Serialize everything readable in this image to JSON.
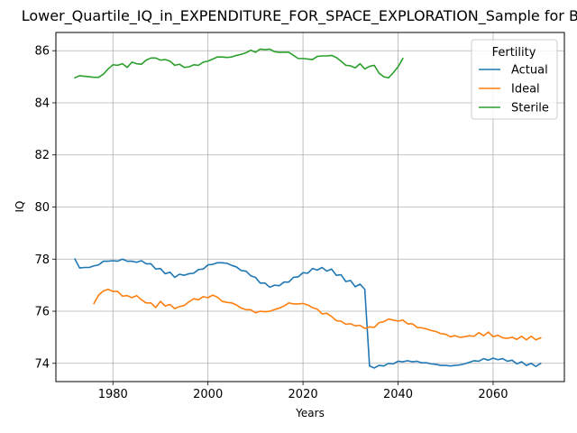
{
  "chart_data": {
    "type": "line",
    "title": "Lower_Quartile_IQ_in_EXPENDITURE_FOR_SPACE_EXPLORATION_Sample for Black",
    "xlabel": "Years",
    "ylabel": "IQ",
    "xlim": [
      1968,
      2075
    ],
    "ylim": [
      73.3,
      86.7
    ],
    "xticks": [
      1980,
      2000,
      2020,
      2040,
      2060
    ],
    "yticks": [
      74,
      76,
      78,
      80,
      82,
      84,
      86
    ],
    "grid": true,
    "legend": {
      "title": "Fertility",
      "placement": "upper-right"
    },
    "series": [
      {
        "name": "Actual",
        "color": "#1f77b4",
        "x": [
          1972,
          1973,
          1974,
          1975,
          1976,
          1977,
          1978,
          1979,
          1980,
          1981,
          1982,
          1983,
          1984,
          1985,
          1986,
          1987,
          1988,
          1989,
          1990,
          1991,
          1992,
          1993,
          1994,
          1995,
          1996,
          1997,
          1998,
          1999,
          2000,
          2001,
          2002,
          2003,
          2004,
          2005,
          2006,
          2007,
          2008,
          2009,
          2010,
          2011,
          2012,
          2013,
          2014,
          2015,
          2016,
          2017,
          2018,
          2019,
          2020,
          2021,
          2022,
          2023,
          2024,
          2025,
          2026,
          2027,
          2028,
          2029,
          2030,
          2031,
          2032,
          2033,
          2034,
          2035,
          2036,
          2037,
          2038,
          2039,
          2040,
          2041,
          2042,
          2043,
          2044,
          2045,
          2046,
          2047,
          2048,
          2049,
          2050,
          2051,
          2052,
          2053,
          2054,
          2055,
          2056,
          2057,
          2058,
          2059,
          2060,
          2061,
          2062,
          2063,
          2064,
          2065,
          2066,
          2067,
          2068,
          2069,
          2070
        ],
        "values": [
          78.0,
          77.66,
          77.68,
          77.68,
          77.74,
          77.78,
          77.92,
          77.92,
          77.94,
          77.92,
          78.0,
          77.92,
          77.92,
          77.88,
          77.94,
          77.82,
          77.82,
          77.62,
          77.64,
          77.44,
          77.5,
          77.3,
          77.42,
          77.38,
          77.44,
          77.46,
          77.6,
          77.62,
          77.78,
          77.8,
          77.86,
          77.86,
          77.84,
          77.76,
          77.7,
          77.56,
          77.54,
          77.36,
          77.3,
          77.08,
          77.08,
          76.92,
          77.0,
          76.98,
          77.12,
          77.12,
          77.3,
          77.32,
          77.48,
          77.46,
          77.64,
          77.58,
          77.68,
          77.54,
          77.62,
          77.38,
          77.4,
          77.14,
          77.18,
          76.94,
          77.04,
          76.84,
          73.9,
          73.82,
          73.92,
          73.9,
          74.0,
          73.98,
          74.08,
          74.06,
          74.1,
          74.06,
          74.08,
          74.02,
          74.02,
          73.98,
          73.96,
          73.92,
          73.92,
          73.9,
          73.92,
          73.94,
          73.98,
          74.04,
          74.1,
          74.08,
          74.18,
          74.12,
          74.2,
          74.14,
          74.18,
          74.08,
          74.12,
          73.98,
          74.06,
          73.92,
          74.0,
          73.88,
          74.0
        ]
      },
      {
        "name": "Ideal",
        "color": "#ff7f0e",
        "x": [
          1976,
          1977,
          1978,
          1979,
          1980,
          1981,
          1982,
          1983,
          1984,
          1985,
          1986,
          1987,
          1988,
          1989,
          1990,
          1991,
          1992,
          1993,
          1994,
          1995,
          1996,
          1997,
          1998,
          1999,
          2000,
          2001,
          2002,
          2003,
          2004,
          2005,
          2006,
          2007,
          2008,
          2009,
          2010,
          2011,
          2012,
          2013,
          2014,
          2015,
          2016,
          2017,
          2018,
          2019,
          2020,
          2021,
          2022,
          2023,
          2024,
          2025,
          2026,
          2027,
          2028,
          2029,
          2030,
          2031,
          2032,
          2033,
          2034,
          2035,
          2036,
          2037,
          2038,
          2039,
          2040,
          2041,
          2042,
          2043,
          2044,
          2045,
          2046,
          2047,
          2048,
          2049,
          2050,
          2051,
          2052,
          2053,
          2054,
          2055,
          2056,
          2057,
          2058,
          2059,
          2060,
          2061,
          2062,
          2063,
          2064,
          2065,
          2066,
          2067,
          2068,
          2069,
          2070
        ],
        "values": [
          76.3,
          76.62,
          76.78,
          76.84,
          76.76,
          76.76,
          76.58,
          76.6,
          76.52,
          76.6,
          76.44,
          76.32,
          76.32,
          76.14,
          76.38,
          76.2,
          76.26,
          76.1,
          76.18,
          76.22,
          76.36,
          76.48,
          76.44,
          76.56,
          76.52,
          76.62,
          76.54,
          76.38,
          76.34,
          76.32,
          76.24,
          76.12,
          76.06,
          76.06,
          75.94,
          76.0,
          75.98,
          76.0,
          76.06,
          76.12,
          76.2,
          76.32,
          76.28,
          76.28,
          76.3,
          76.24,
          76.14,
          76.08,
          75.9,
          75.92,
          75.8,
          75.64,
          75.62,
          75.5,
          75.52,
          75.44,
          75.46,
          75.34,
          75.4,
          75.38,
          75.56,
          75.6,
          75.7,
          75.66,
          75.62,
          75.66,
          75.52,
          75.52,
          75.38,
          75.36,
          75.32,
          75.26,
          75.22,
          75.14,
          75.12,
          75.02,
          75.06,
          75.0,
          75.02,
          75.06,
          75.04,
          75.18,
          75.06,
          75.2,
          75.02,
          75.08,
          74.98,
          74.96,
          75.0,
          74.92,
          75.04,
          74.9,
          75.04,
          74.9,
          74.98
        ]
      },
      {
        "name": "Sterile",
        "color": "#2ca02c",
        "x": [
          1972,
          1973,
          1974,
          1975,
          1976,
          1977,
          1978,
          1979,
          1980,
          1981,
          1982,
          1983,
          1984,
          1985,
          1986,
          1987,
          1988,
          1989,
          1990,
          1991,
          1992,
          1993,
          1994,
          1995,
          1996,
          1997,
          1998,
          1999,
          2000,
          2001,
          2002,
          2003,
          2004,
          2005,
          2006,
          2007,
          2008,
          2009,
          2010,
          2011,
          2012,
          2013,
          2014,
          2015,
          2016,
          2017,
          2018,
          2019,
          2020,
          2021,
          2022,
          2023,
          2024,
          2025,
          2026,
          2027,
          2028,
          2029,
          2030,
          2031,
          2032,
          2033,
          2034,
          2035,
          2036,
          2037,
          2038,
          2039,
          2040,
          2041
        ],
        "values": [
          84.96,
          85.04,
          85.02,
          85.0,
          84.98,
          84.98,
          85.1,
          85.3,
          85.46,
          85.44,
          85.5,
          85.36,
          85.56,
          85.5,
          85.48,
          85.64,
          85.72,
          85.72,
          85.64,
          85.66,
          85.6,
          85.44,
          85.48,
          85.36,
          85.38,
          85.46,
          85.44,
          85.56,
          85.6,
          85.68,
          85.76,
          85.76,
          85.74,
          85.76,
          85.82,
          85.86,
          85.92,
          86.02,
          85.94,
          86.06,
          86.04,
          86.06,
          85.96,
          85.94,
          85.94,
          85.94,
          85.82,
          85.7,
          85.7,
          85.68,
          85.66,
          85.78,
          85.8,
          85.8,
          85.82,
          85.74,
          85.6,
          85.44,
          85.42,
          85.34,
          85.5,
          85.3,
          85.4,
          85.44,
          85.14,
          85.0,
          84.96,
          85.16,
          85.38,
          85.7
        ]
      }
    ]
  }
}
